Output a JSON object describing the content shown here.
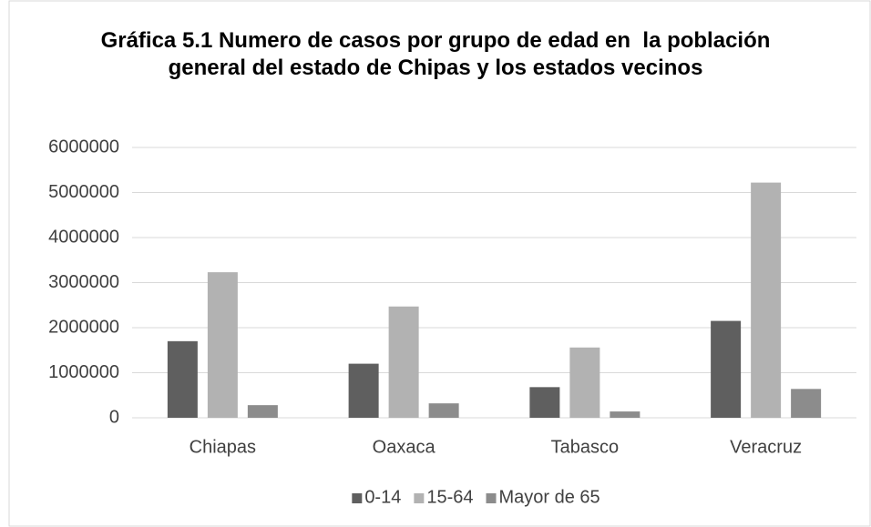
{
  "chart_data": {
    "type": "bar",
    "title": "Gráfica 5.1 Numero de casos por grupo de edad en  la población general del estado de Chipas y los estados vecinos",
    "categories": [
      "Chiapas",
      "Oaxaca",
      "Tabasco",
      "Veracruz"
    ],
    "series": [
      {
        "name": "0-14",
        "color": "#5f5f5f",
        "values": [
          1700000,
          1200000,
          680000,
          2150000
        ]
      },
      {
        "name": "15-64",
        "color": "#b2b2b2",
        "values": [
          3230000,
          2470000,
          1560000,
          5220000
        ]
      },
      {
        "name": "Mayor de 65",
        "color": "#8c8c8c",
        "values": [
          280000,
          320000,
          140000,
          640000
        ]
      }
    ],
    "ylim": [
      0,
      6000000
    ],
    "yticks": [
      0,
      1000000,
      2000000,
      3000000,
      4000000,
      5000000,
      6000000
    ],
    "grid": true,
    "legend": "bottom"
  }
}
